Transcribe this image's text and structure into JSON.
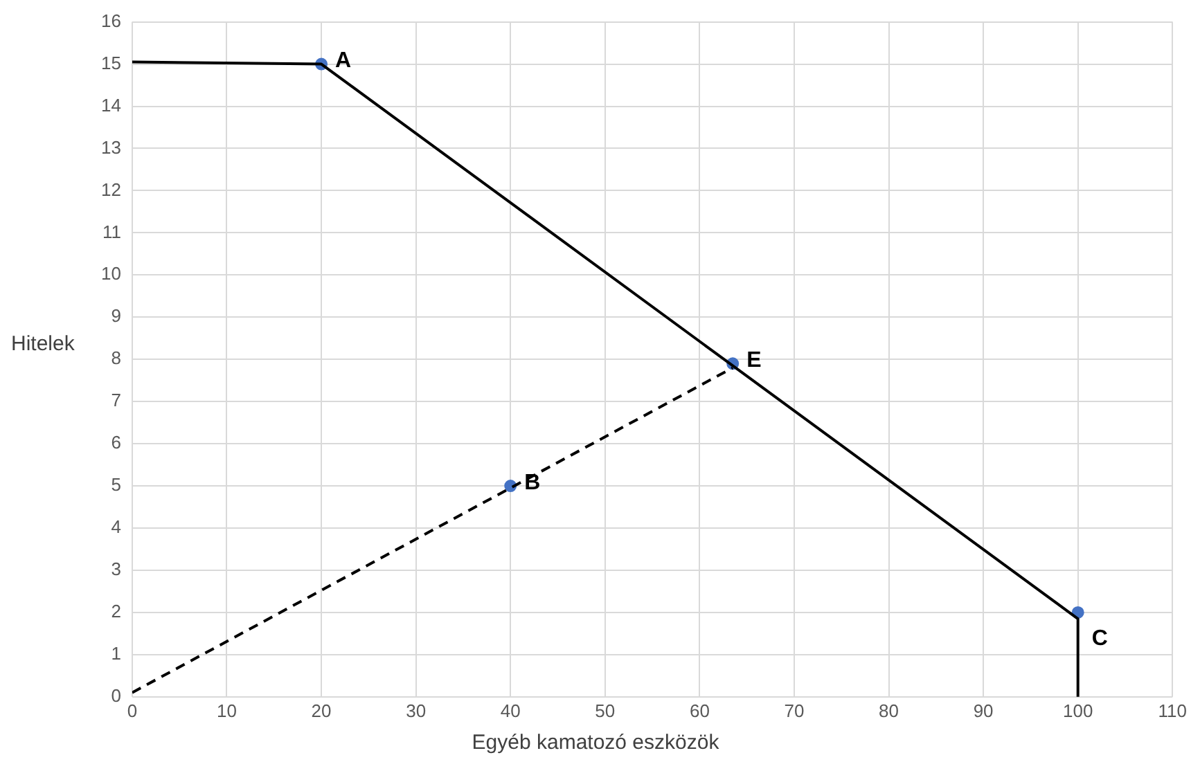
{
  "chart_data": {
    "type": "line",
    "xlabel": "Egyéb kamatozó eszközök",
    "ylabel": "Hitelek",
    "xlim": [
      0,
      110
    ],
    "xticks": [
      0,
      10,
      20,
      30,
      40,
      50,
      60,
      70,
      80,
      90,
      100,
      110
    ],
    "ylim": [
      0,
      16
    ],
    "yticks": [
      0,
      1,
      2,
      3,
      4,
      5,
      6,
      7,
      8,
      9,
      10,
      11,
      12,
      13,
      14,
      15,
      16
    ],
    "grid": true,
    "legend": false,
    "series": [
      {
        "color": "#000000",
        "line_style": "solid",
        "marker": "none",
        "x": [
          0,
          20,
          100,
          100
        ],
        "values": [
          15.05,
          15,
          1.85,
          0
        ]
      },
      {
        "color": "#000000",
        "line_style": "dashed",
        "marker": "none",
        "x": [
          0,
          63.5
        ],
        "values": [
          0.1,
          7.8
        ]
      },
      {
        "type": "scatter",
        "color": "#4472c4",
        "marker": "circle",
        "x": [
          20,
          40,
          63.5,
          100
        ],
        "values": [
          15,
          5,
          7.9,
          2
        ]
      }
    ],
    "annotations": [
      {
        "text": "A",
        "x": 20,
        "y": 15
      },
      {
        "text": "B",
        "x": 40,
        "y": 5
      },
      {
        "text": "E",
        "x": 63.5,
        "y": 7.9
      },
      {
        "text": "C",
        "x": 100,
        "y": 1.3
      }
    ]
  }
}
